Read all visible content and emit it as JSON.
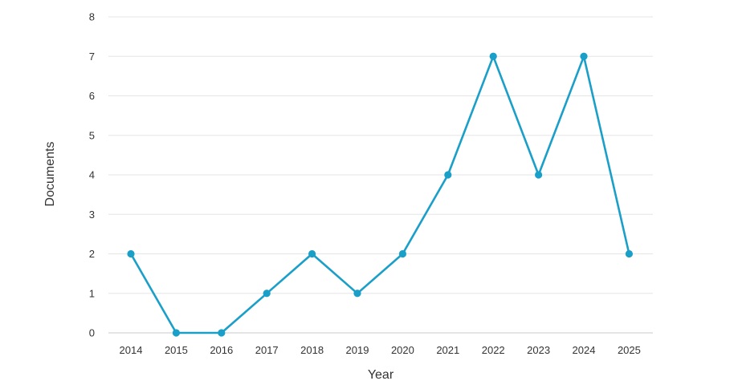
{
  "chart_data": {
    "type": "line",
    "title": "",
    "xlabel": "Year",
    "ylabel": "Documents",
    "x": [
      "2014",
      "2015",
      "2016",
      "2017",
      "2018",
      "2019",
      "2020",
      "2021",
      "2022",
      "2023",
      "2024",
      "2025"
    ],
    "series": [
      {
        "values": [
          2,
          0,
          0,
          1,
          2,
          1,
          2,
          4,
          7,
          4,
          7,
          2
        ]
      }
    ],
    "ylim": [
      0,
      8
    ],
    "yticks": [
      0,
      1,
      2,
      3,
      4,
      5,
      6,
      7,
      8
    ],
    "grid": true,
    "legend": "none",
    "colors": {
      "line": "#1a9fc9",
      "grid": "#e5e5e5",
      "baseline": "#c8c8c8"
    }
  }
}
